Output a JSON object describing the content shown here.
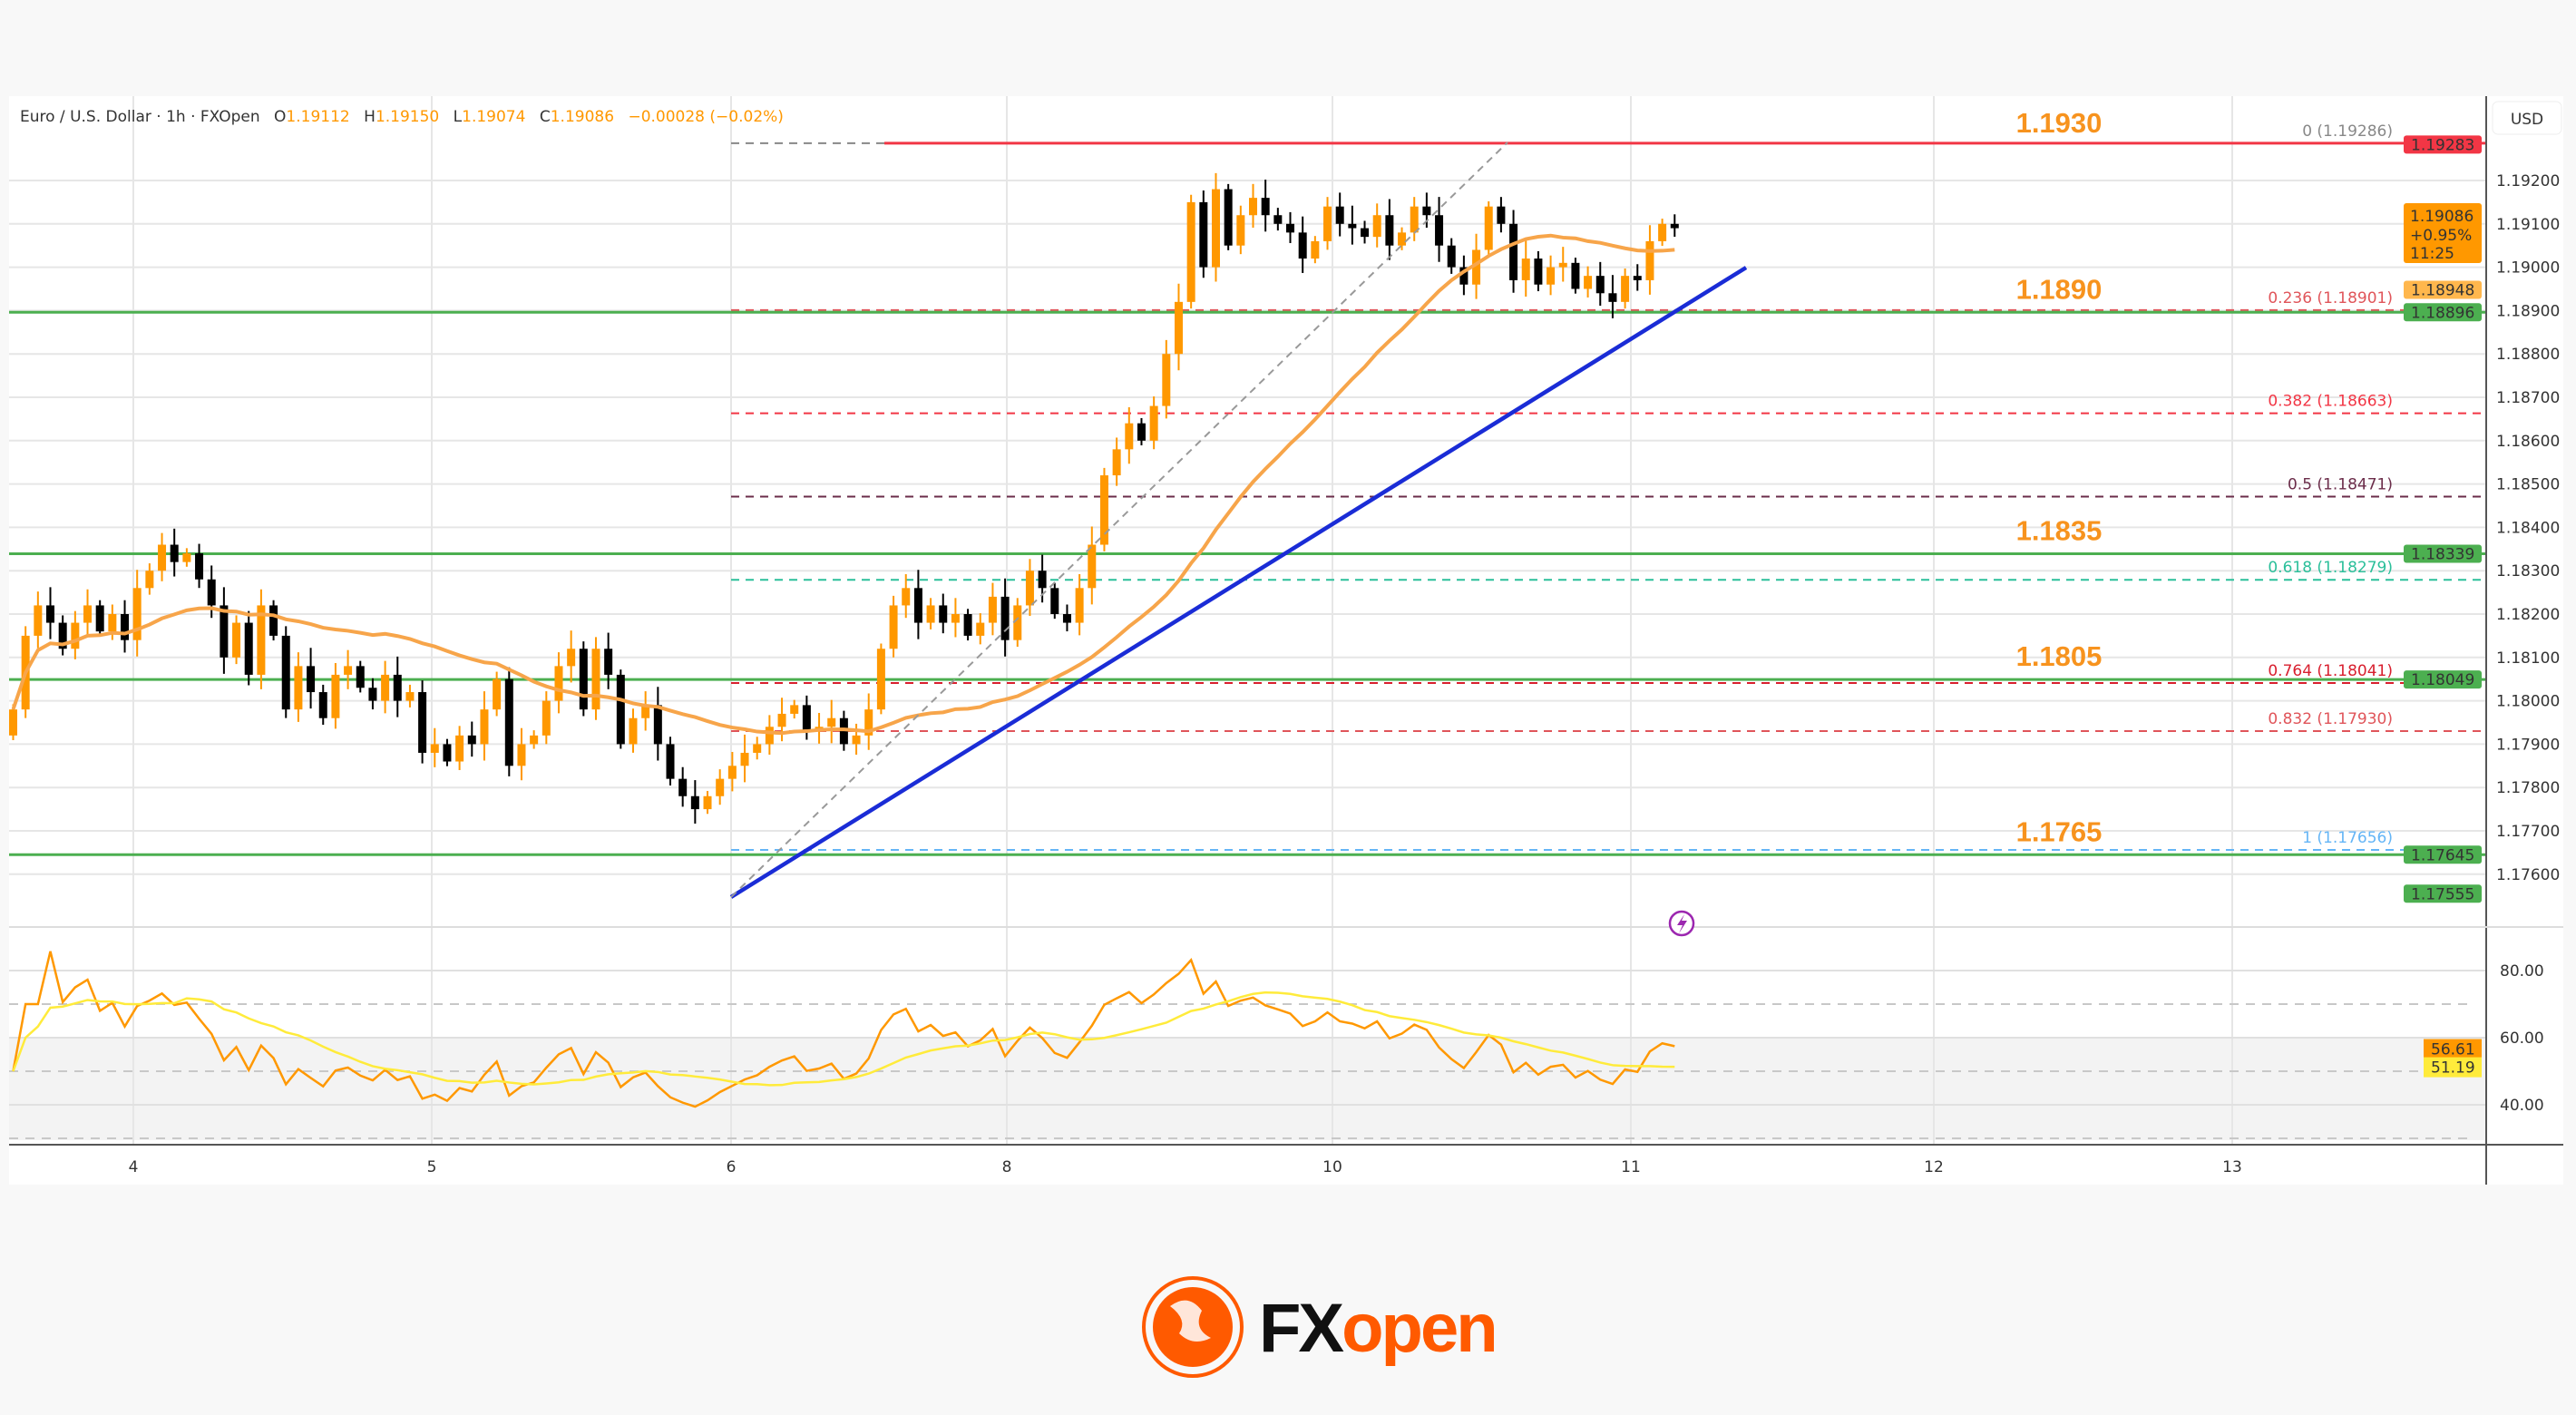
{
  "header": {
    "symbol": "Euro / U.S. Dollar · 1h · FXOpen",
    "o_label": "O",
    "o": "1.19112",
    "h_label": "H",
    "h": "1.19150",
    "l_label": "L",
    "l": "1.19074",
    "c_label": "C",
    "c": "1.19086",
    "change": "−0.00028 (−0.02%)"
  },
  "currency_button": "USD",
  "levels": [
    {
      "label": "1.1930",
      "price": 1.19286,
      "color": "#f23645"
    },
    {
      "label": "1.1890",
      "price": 1.18896,
      "color": "#4caf50"
    },
    {
      "label": "1.1835",
      "price": 1.18339,
      "color": "#4caf50"
    },
    {
      "label": "1.1805",
      "price": 1.18049,
      "color": "#4caf50"
    },
    {
      "label": "1.1765",
      "price": 1.17645,
      "color": "#4caf50"
    }
  ],
  "fib_levels": [
    {
      "label": "0 (1.19286)",
      "price": 1.19286,
      "color": "#888888"
    },
    {
      "label": "0.236 (1.18901)",
      "price": 1.18901,
      "color": "#e0555a"
    },
    {
      "label": "0.382 (1.18663)",
      "price": 1.18663,
      "color": "#f23645"
    },
    {
      "label": "0.5 (1.18471)",
      "price": 1.18471,
      "color": "#6b2d4a"
    },
    {
      "label": "0.618 (1.18279)",
      "price": 1.18279,
      "color": "#2bbf9a"
    },
    {
      "label": "0.764 (1.18041)",
      "price": 1.18041,
      "color": "#d81f2e"
    },
    {
      "label": "0.832 (1.17930)",
      "price": 1.1793,
      "color": "#e0555a"
    },
    {
      "label": "1 (1.17656)",
      "price": 1.17656,
      "color": "#64b5f6"
    }
  ],
  "price_badges": [
    {
      "text": "1.19283",
      "price": 1.19283,
      "color": "#f23645"
    },
    {
      "text": "1.18948",
      "price": 1.18948,
      "color": "#ffb74d"
    },
    {
      "text": "1.18896",
      "price": 1.18896,
      "color": "#4caf50"
    },
    {
      "text": "1.18339",
      "price": 1.18339,
      "color": "#4caf50"
    },
    {
      "text": "1.18049",
      "price": 1.18049,
      "color": "#4caf50"
    },
    {
      "text": "1.17645",
      "price": 1.17645,
      "color": "#4caf50"
    },
    {
      "text": "1.17555",
      "price": 1.17555,
      "color": "#4caf50"
    }
  ],
  "last_price_badge": {
    "price": "1.19086",
    "change": "+0.95%",
    "countdown": "11:25",
    "color": "#ff9800"
  },
  "rsi_badges": [
    {
      "text": "56.61",
      "value": 56.61,
      "color": "#ff9800"
    },
    {
      "text": "51.19",
      "value": 51.19,
      "color": "#ffeb3b"
    }
  ],
  "logo": {
    "text_dark": "FX",
    "text_accent": "open",
    "accent": "#ff5a00"
  },
  "chart_data": [
    {
      "type": "candlestick",
      "title": "Euro / U.S. Dollar · 1h · FXOpen",
      "y_ticks": [
        "1.19200",
        "1.19100",
        "1.19000",
        "1.18900",
        "1.18800",
        "1.18700",
        "1.18600",
        "1.18500",
        "1.18400",
        "1.18300",
        "1.18200",
        "1.18100",
        "1.18000",
        "1.17900",
        "1.17800",
        "1.17700",
        "1.17600"
      ],
      "x_ticks": [
        "4",
        "5",
        "6",
        "8",
        "10",
        "11",
        "12",
        "13"
      ],
      "ylim": [
        1.1752,
        1.1935
      ],
      "up_color": "#ff9800",
      "down_color": "#000000",
      "ma_color": "#f7a54a",
      "trendline_color": "#1a2cd6",
      "closes": [
        1.1798,
        1.1815,
        1.1822,
        1.1818,
        1.1812,
        1.1818,
        1.1822,
        1.1816,
        1.182,
        1.1814,
        1.1826,
        1.183,
        1.1836,
        1.1832,
        1.1834,
        1.1828,
        1.1822,
        1.181,
        1.1818,
        1.1806,
        1.1822,
        1.1815,
        1.1798,
        1.1808,
        1.1802,
        1.1796,
        1.1806,
        1.1808,
        1.1803,
        1.18,
        1.1806,
        1.18,
        1.1802,
        1.1788,
        1.179,
        1.1786,
        1.1792,
        1.179,
        1.1798,
        1.1805,
        1.1785,
        1.179,
        1.1792,
        1.18,
        1.1808,
        1.1812,
        1.1798,
        1.1812,
        1.1806,
        1.179,
        1.1796,
        1.1799,
        1.179,
        1.1782,
        1.1778,
        1.1775,
        1.1778,
        1.1782,
        1.1785,
        1.1788,
        1.179,
        1.1794,
        1.1797,
        1.1799,
        1.1793,
        1.1794,
        1.1796,
        1.179,
        1.1792,
        1.1798,
        1.1812,
        1.1822,
        1.1826,
        1.1818,
        1.1822,
        1.1818,
        1.182,
        1.1815,
        1.1818,
        1.1824,
        1.1814,
        1.1822,
        1.183,
        1.1826,
        1.182,
        1.1818,
        1.1826,
        1.1836,
        1.1852,
        1.1858,
        1.1864,
        1.186,
        1.1868,
        1.188,
        1.1892,
        1.1915,
        1.19,
        1.1918,
        1.1905,
        1.1912,
        1.1916,
        1.1912,
        1.191,
        1.1908,
        1.1902,
        1.1906,
        1.1914,
        1.191,
        1.1909,
        1.1907,
        1.1912,
        1.1905,
        1.1908,
        1.1914,
        1.1912,
        1.1905,
        1.19,
        1.1896,
        1.1904,
        1.1914,
        1.191,
        1.1897,
        1.1902,
        1.1896,
        1.19,
        1.1901,
        1.1895,
        1.1898,
        1.1894,
        1.1892,
        1.1898,
        1.1897,
        1.1906,
        1.191,
        1.1909
      ]
    },
    {
      "type": "line",
      "title": "",
      "y_ticks": [
        "80.00",
        "60.00",
        "40.00"
      ],
      "ylim": [
        30,
        90
      ],
      "bands": [
        70,
        50,
        30
      ],
      "rsi_color": "#ff9800",
      "signal_color": "#ffeb3b"
    }
  ]
}
